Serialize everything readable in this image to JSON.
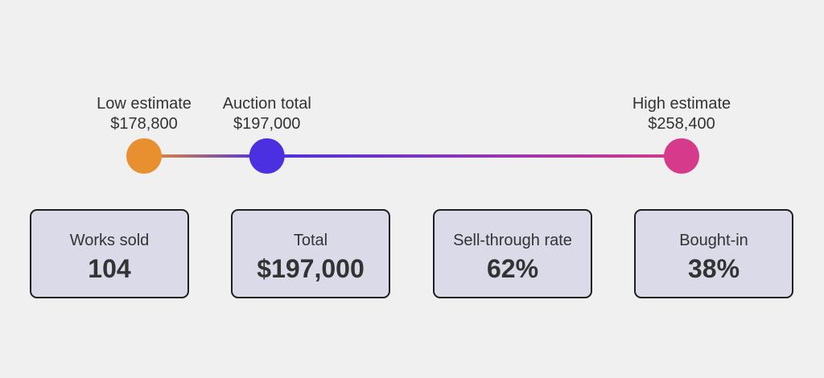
{
  "chart_data": {
    "type": "range",
    "x": [
      178800,
      197000,
      258400
    ],
    "xlim": [
      178800,
      258400
    ],
    "points": [
      {
        "label": "Low estimate",
        "value": 178800,
        "value_label": "$178,800",
        "color": "#e88f30"
      },
      {
        "label": "Auction total",
        "value": 197000,
        "value_label": "$197,000",
        "color": "#4a30e0"
      },
      {
        "label": "High estimate",
        "value": 258400,
        "value_label": "$258,400",
        "color": "#d63a8b"
      }
    ]
  },
  "cards": [
    {
      "label": "Works sold",
      "value": "104"
    },
    {
      "label": "Total",
      "value": "$197,000"
    },
    {
      "label": "Sell-through rate",
      "value": "62%"
    },
    {
      "label": "Bought-in",
      "value": "38%"
    }
  ]
}
